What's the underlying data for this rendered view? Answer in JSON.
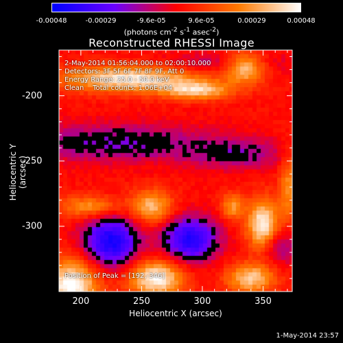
{
  "colorbar": {
    "tick_labels": [
      "-0.00048",
      "-0.00029",
      "-9.6e-05",
      "9.6e-05",
      "0.00029",
      "0.00048"
    ],
    "tick_values": [
      -0.00048,
      -0.00029,
      -9.6e-05,
      9.6e-05,
      0.00029,
      0.00048
    ],
    "range": [
      -0.00048,
      0.00048
    ],
    "units_prefix": "(photons cm",
    "units_sup1": "-2",
    "units_mid1": " s",
    "units_sup2": "-1",
    "units_mid2": " asec",
    "units_sup3": "-2",
    "units_suffix": ")"
  },
  "info": {
    "time_range": "2-May-2014 01:56:04.000 to 02:00:10.000",
    "detectors": "Detectors: 3F 5F 6F 7F 8F 9F, Att 0",
    "energy": "Energy Range: 25.0 - 50.0 keV",
    "clean": "Clean    Total counts: 1.06E+04",
    "peak": "Position of Peak = [192,-346]"
  },
  "footer": {
    "timestamp": "1-May-2014 23:57"
  },
  "chart_data": {
    "type": "heatmap",
    "title": "Reconstructed RHESSI Image",
    "xlabel": "Heliocentric X (arcsec)",
    "ylabel": "Heliocentric Y (arcsec)",
    "xlim": [
      182,
      374
    ],
    "ylim": [
      -350,
      -165
    ],
    "x_ticks": [
      200,
      250,
      300,
      350
    ],
    "y_ticks": [
      -200,
      -250,
      -300
    ],
    "colormap": [
      "#0000ff",
      "#6a00ff",
      "#ff0000",
      "#ff7a00",
      "#ffffff"
    ],
    "blobs": [
      {
        "x": 240,
        "y": -187,
        "sx": 40,
        "sy": 7,
        "a": 0.9
      },
      {
        "x": 296,
        "y": -196,
        "sx": 20,
        "sy": 5,
        "a": 0.7
      },
      {
        "x": 335,
        "y": -178,
        "sx": 12,
        "sy": 8,
        "a": 0.85
      },
      {
        "x": 192,
        "y": -345,
        "sx": 16,
        "sy": 14,
        "a": 1.0
      },
      {
        "x": 262,
        "y": -340,
        "sx": 16,
        "sy": 10,
        "a": 0.95
      },
      {
        "x": 258,
        "y": -285,
        "sx": 12,
        "sy": 9,
        "a": 0.7
      },
      {
        "x": 350,
        "y": -300,
        "sx": 9,
        "sy": 14,
        "a": 1.0
      },
      {
        "x": 325,
        "y": -285,
        "sx": 7,
        "sy": 7,
        "a": 0.55
      },
      {
        "x": 340,
        "y": -340,
        "sx": 14,
        "sy": 8,
        "a": 0.75
      },
      {
        "x": 207,
        "y": -285,
        "sx": 18,
        "sy": 6,
        "a": 0.55
      },
      {
        "x": 372,
        "y": -270,
        "sx": 6,
        "sy": 20,
        "a": 0.5
      },
      {
        "x": 225,
        "y": -236,
        "sx": 60,
        "sy": 10,
        "a": -0.45
      },
      {
        "x": 330,
        "y": -245,
        "sx": 30,
        "sy": 8,
        "a": -0.35
      },
      {
        "x": 225,
        "y": -312,
        "sx": 16,
        "sy": 14,
        "a": -0.95
      },
      {
        "x": 290,
        "y": -310,
        "sx": 16,
        "sy": 12,
        "a": -0.9
      },
      {
        "x": 362,
        "y": -315,
        "sx": 12,
        "sy": 10,
        "a": -0.45
      },
      {
        "x": 320,
        "y": -175,
        "sx": 35,
        "sy": 6,
        "a": -0.3
      }
    ]
  }
}
